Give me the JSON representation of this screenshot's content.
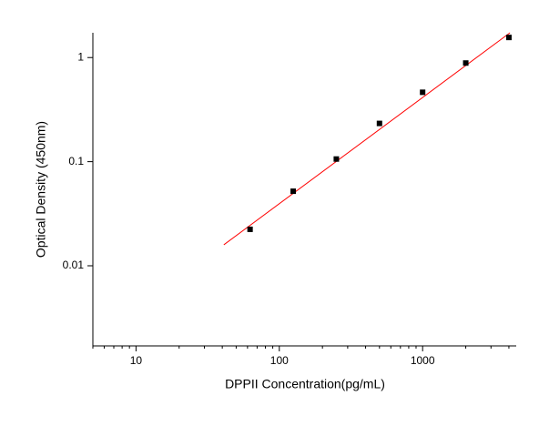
{
  "chart_data": {
    "type": "scatter",
    "xlabel": "DPPII  Concentration(pg/mL)",
    "ylabel": "Optical Density (450nm)",
    "xscale": "log",
    "yscale": "log",
    "xlim": [
      5,
      4500
    ],
    "ylim": [
      0.0017,
      1.73
    ],
    "xticks": [
      10,
      100,
      1000
    ],
    "xminorticks": [
      5,
      6,
      7,
      8,
      9,
      20,
      30,
      40,
      50,
      60,
      70,
      80,
      90,
      200,
      300,
      400,
      500,
      600,
      700,
      800,
      900,
      2000,
      3000,
      4000
    ],
    "yticks": [
      0.01,
      0.1,
      1
    ],
    "series": [
      {
        "color": "#000000",
        "x": [
          62.5,
          125,
          250,
          500,
          1000,
          2000,
          4000
        ],
        "values": [
          0.0224,
          0.052,
          0.106,
          0.233,
          0.464,
          0.886,
          1.56
        ]
      }
    ],
    "fit_line": {
      "color": "#ff0000",
      "x": [
        41,
        4070
      ],
      "values": [
        0.0159,
        1.73
      ]
    }
  }
}
